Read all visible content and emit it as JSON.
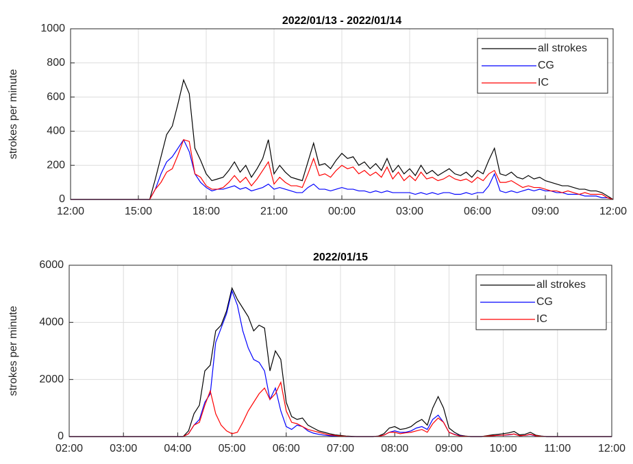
{
  "chart_data": [
    {
      "type": "line",
      "title": "2022/01/13 - 2022/01/14",
      "ylabel": "strokes per minute",
      "x": [
        12,
        12.25,
        12.5,
        12.75,
        13,
        13.25,
        13.5,
        13.75,
        14,
        14.25,
        14.5,
        14.75,
        15,
        15.25,
        15.5,
        15.75,
        16,
        16.25,
        16.5,
        16.75,
        17,
        17.25,
        17.5,
        17.75,
        18,
        18.25,
        18.5,
        18.75,
        19,
        19.25,
        19.5,
        19.75,
        20,
        20.25,
        20.5,
        20.75,
        21,
        21.25,
        21.5,
        21.75,
        22,
        22.25,
        22.5,
        22.75,
        23,
        23.25,
        23.5,
        23.75,
        24,
        24.25,
        24.5,
        24.75,
        25,
        25.25,
        25.5,
        25.75,
        26,
        26.25,
        26.5,
        26.75,
        27,
        27.25,
        27.5,
        27.75,
        28,
        28.25,
        28.5,
        28.75,
        29,
        29.25,
        29.5,
        29.75,
        30,
        30.25,
        30.5,
        30.75,
        31,
        31.25,
        31.5,
        31.75,
        32,
        32.25,
        32.5,
        32.75,
        33,
        33.25,
        33.5,
        33.75,
        34,
        34.25,
        34.5,
        34.75,
        35,
        35.25,
        35.5,
        35.75,
        36
      ],
      "series": [
        {
          "name": "all strokes",
          "color": "#000000",
          "values": [
            0,
            0,
            0,
            0,
            0,
            0,
            0,
            0,
            0,
            0,
            0,
            0,
            0,
            0,
            0,
            120,
            250,
            380,
            430,
            560,
            700,
            620,
            300,
            230,
            150,
            110,
            120,
            130,
            170,
            220,
            160,
            200,
            130,
            180,
            240,
            350,
            150,
            200,
            160,
            130,
            120,
            110,
            220,
            330,
            200,
            210,
            180,
            230,
            270,
            240,
            250,
            200,
            220,
            180,
            210,
            170,
            240,
            160,
            200,
            150,
            180,
            140,
            200,
            150,
            170,
            140,
            160,
            180,
            150,
            140,
            160,
            130,
            170,
            150,
            230,
            300,
            150,
            140,
            160,
            130,
            120,
            140,
            120,
            130,
            110,
            100,
            90,
            80,
            80,
            70,
            60,
            60,
            50,
            50,
            40,
            20,
            0
          ]
        },
        {
          "name": "CG",
          "color": "#0000ff",
          "values": [
            0,
            0,
            0,
            0,
            0,
            0,
            0,
            0,
            0,
            0,
            0,
            0,
            0,
            0,
            0,
            60,
            150,
            220,
            250,
            300,
            350,
            280,
            150,
            100,
            70,
            50,
            60,
            60,
            70,
            80,
            60,
            70,
            50,
            60,
            70,
            90,
            60,
            70,
            60,
            50,
            40,
            40,
            70,
            90,
            60,
            60,
            50,
            60,
            70,
            60,
            60,
            50,
            50,
            40,
            50,
            40,
            50,
            40,
            40,
            40,
            40,
            30,
            40,
            30,
            40,
            30,
            40,
            40,
            30,
            30,
            40,
            30,
            40,
            40,
            80,
            150,
            50,
            40,
            50,
            40,
            50,
            60,
            50,
            60,
            50,
            50,
            40,
            40,
            30,
            30,
            30,
            20,
            20,
            20,
            10,
            10,
            0
          ]
        },
        {
          "name": "IC",
          "color": "#ff0000",
          "values": [
            0,
            0,
            0,
            0,
            0,
            0,
            0,
            0,
            0,
            0,
            0,
            0,
            0,
            0,
            0,
            60,
            100,
            160,
            180,
            260,
            350,
            340,
            150,
            130,
            80,
            60,
            60,
            70,
            100,
            140,
            100,
            130,
            80,
            120,
            170,
            220,
            90,
            130,
            100,
            80,
            80,
            70,
            150,
            240,
            140,
            150,
            130,
            170,
            200,
            180,
            190,
            150,
            170,
            140,
            160,
            130,
            190,
            120,
            160,
            110,
            140,
            110,
            160,
            120,
            130,
            110,
            120,
            140,
            120,
            110,
            120,
            100,
            130,
            110,
            150,
            170,
            100,
            100,
            110,
            90,
            70,
            80,
            70,
            70,
            60,
            50,
            50,
            40,
            50,
            40,
            30,
            40,
            30,
            30,
            30,
            10,
            0
          ]
        }
      ],
      "xlim": [
        12,
        36
      ],
      "xticks": [
        {
          "value": 12,
          "label": "12:00"
        },
        {
          "value": 15,
          "label": "15:00"
        },
        {
          "value": 18,
          "label": "18:00"
        },
        {
          "value": 21,
          "label": "21:00"
        },
        {
          "value": 24,
          "label": "00:00"
        },
        {
          "value": 27,
          "label": "03:00"
        },
        {
          "value": 30,
          "label": "06:00"
        },
        {
          "value": 33,
          "label": "09:00"
        },
        {
          "value": 36,
          "label": "12:00"
        }
      ],
      "ylim": [
        0,
        1000
      ],
      "yticks": [
        0,
        200,
        400,
        600,
        800,
        1000
      ],
      "grid": true,
      "legend": "upper right"
    },
    {
      "type": "line",
      "title": "2022/01/15",
      "ylabel": "strokes per minute",
      "x": [
        2,
        2.1,
        2.2,
        2.3,
        2.4,
        2.5,
        2.6,
        2.7,
        2.8,
        2.9,
        3,
        3.1,
        3.2,
        3.3,
        3.4,
        3.5,
        3.6,
        3.7,
        3.8,
        3.9,
        4,
        4.1,
        4.2,
        4.3,
        4.4,
        4.5,
        4.6,
        4.7,
        4.8,
        4.9,
        5,
        5.1,
        5.2,
        5.3,
        5.4,
        5.5,
        5.6,
        5.7,
        5.8,
        5.9,
        6,
        6.1,
        6.2,
        6.3,
        6.4,
        6.5,
        6.6,
        6.7,
        6.8,
        6.9,
        7,
        7.1,
        7.2,
        7.3,
        7.4,
        7.5,
        7.6,
        7.7,
        7.8,
        7.9,
        8,
        8.1,
        8.2,
        8.3,
        8.4,
        8.5,
        8.6,
        8.7,
        8.8,
        8.9,
        9,
        9.1,
        9.2,
        9.3,
        9.4,
        9.5,
        9.6,
        9.7,
        9.8,
        9.9,
        10,
        10.1,
        10.2,
        10.3,
        10.4,
        10.5,
        10.6,
        10.7,
        10.8,
        10.9,
        11,
        11.1,
        11.2,
        11.3,
        11.4,
        11.5,
        11.6,
        11.7,
        11.8,
        11.9,
        12
      ],
      "series": [
        {
          "name": "all strokes",
          "color": "#000000",
          "values": [
            0,
            0,
            0,
            0,
            0,
            0,
            0,
            0,
            0,
            0,
            0,
            0,
            0,
            0,
            0,
            0,
            0,
            0,
            0,
            0,
            0,
            0,
            200,
            800,
            1100,
            2300,
            2500,
            3700,
            3900,
            4400,
            5200,
            4800,
            4500,
            4200,
            3700,
            3900,
            3800,
            2300,
            3000,
            2700,
            1200,
            700,
            600,
            650,
            400,
            300,
            200,
            150,
            100,
            60,
            40,
            20,
            10,
            0,
            0,
            0,
            0,
            20,
            100,
            300,
            350,
            250,
            280,
            350,
            500,
            600,
            400,
            1000,
            1400,
            1000,
            300,
            150,
            50,
            20,
            0,
            0,
            0,
            30,
            60,
            80,
            100,
            130,
            180,
            60,
            80,
            150,
            50,
            20,
            0,
            0,
            0,
            0,
            0,
            0,
            0,
            0,
            0,
            0,
            0,
            0,
            0
          ]
        },
        {
          "name": "CG",
          "color": "#0000ff",
          "values": [
            0,
            0,
            0,
            0,
            0,
            0,
            0,
            0,
            0,
            0,
            0,
            0,
            0,
            0,
            0,
            0,
            0,
            0,
            0,
            0,
            0,
            0,
            100,
            400,
            600,
            1200,
            1500,
            3300,
            3800,
            4300,
            5100,
            4600,
            3700,
            3100,
            2700,
            2600,
            2300,
            1300,
            1700,
            900,
            350,
            250,
            400,
            350,
            200,
            120,
            80,
            50,
            30,
            20,
            10,
            0,
            0,
            0,
            0,
            0,
            0,
            10,
            50,
            150,
            200,
            150,
            150,
            200,
            300,
            350,
            250,
            600,
            750,
            500,
            150,
            80,
            30,
            10,
            0,
            0,
            0,
            10,
            30,
            40,
            50,
            60,
            90,
            30,
            40,
            70,
            20,
            10,
            0,
            0,
            0,
            0,
            0,
            0,
            0,
            0,
            0,
            0,
            0,
            0,
            0
          ]
        },
        {
          "name": "IC",
          "color": "#ff0000",
          "values": [
            0,
            0,
            0,
            0,
            0,
            0,
            0,
            0,
            0,
            0,
            0,
            0,
            0,
            0,
            0,
            0,
            0,
            0,
            0,
            0,
            0,
            0,
            100,
            400,
            500,
            1100,
            1600,
            800,
            400,
            200,
            100,
            150,
            500,
            900,
            1200,
            1500,
            1700,
            1300,
            1500,
            1900,
            900,
            500,
            450,
            350,
            250,
            200,
            150,
            100,
            60,
            40,
            20,
            10,
            0,
            0,
            0,
            0,
            0,
            10,
            50,
            150,
            150,
            100,
            130,
            150,
            200,
            250,
            150,
            450,
            650,
            500,
            150,
            70,
            20,
            10,
            0,
            0,
            0,
            20,
            30,
            40,
            50,
            70,
            90,
            30,
            40,
            80,
            30,
            10,
            0,
            0,
            0,
            0,
            0,
            0,
            0,
            0,
            0,
            0,
            0,
            0,
            0
          ]
        }
      ],
      "xlim": [
        2,
        12
      ],
      "xticks": [
        {
          "value": 2,
          "label": "02:00"
        },
        {
          "value": 3,
          "label": "03:00"
        },
        {
          "value": 4,
          "label": "04:00"
        },
        {
          "value": 5,
          "label": "05:00"
        },
        {
          "value": 6,
          "label": "06:00"
        },
        {
          "value": 7,
          "label": "07:00"
        },
        {
          "value": 8,
          "label": "08:00"
        },
        {
          "value": 9,
          "label": "09:00"
        },
        {
          "value": 10,
          "label": "10:00"
        },
        {
          "value": 11,
          "label": "11:00"
        },
        {
          "value": 12,
          "label": "12:00"
        }
      ],
      "ylim": [
        0,
        6000
      ],
      "yticks": [
        0,
        2000,
        4000,
        6000
      ],
      "grid": true,
      "legend": "upper right"
    }
  ]
}
